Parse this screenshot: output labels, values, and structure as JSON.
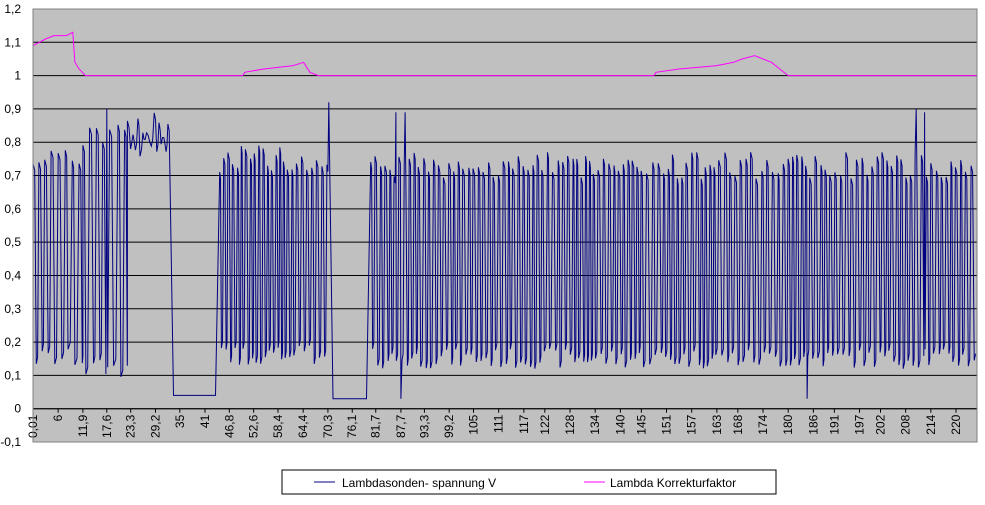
{
  "chart_data": {
    "type": "line",
    "title": "",
    "xlabel": "",
    "ylabel": "",
    "ylim": [
      -0.1,
      1.2
    ],
    "y_ticks": [
      "-0,1",
      "0",
      "0,1",
      "0,2",
      "0,3",
      "0,4",
      "0,5",
      "0,6",
      "0,7",
      "0,8",
      "0,9",
      "1",
      "1,1",
      "1,2"
    ],
    "x_range": [
      0.01,
      225
    ],
    "x_ticks": [
      "0,01",
      "6",
      "11,9",
      "17,6",
      "23,3",
      "29,2",
      "35",
      "41",
      "46,8",
      "52,6",
      "58,4",
      "64,4",
      "70,3",
      "76,1",
      "81,7",
      "87,7",
      "93,3",
      "99,2",
      "105",
      "111",
      "117",
      "122",
      "128",
      "134",
      "140",
      "145",
      "151",
      "157",
      "163",
      "168",
      "174",
      "180",
      "186",
      "191",
      "197",
      "202",
      "208",
      "214",
      "220"
    ],
    "x_tick_values": [
      0.01,
      6,
      11.9,
      17.6,
      23.3,
      29.2,
      35,
      41,
      46.8,
      52.6,
      58.4,
      64.4,
      70.3,
      76.1,
      81.7,
      87.7,
      93.3,
      99.2,
      105,
      111,
      117,
      122,
      128,
      134,
      140,
      145,
      151,
      157,
      163,
      168,
      174,
      180,
      186,
      191,
      197,
      202,
      208,
      214,
      220
    ],
    "grid": "horizontal",
    "plot_background": "#c0c0c0",
    "legend_position": "bottom",
    "series": [
      {
        "name": "Lambdasonden- spannung  V",
        "color": "#000080",
        "pattern": "oscillating",
        "segments": [
          {
            "x_from": 0.01,
            "x_to": 11.9,
            "low": 0.12,
            "high": 0.78,
            "period": 1.6
          },
          {
            "x_from": 11.9,
            "x_to": 22.5,
            "low": 0.09,
            "high": 0.87,
            "period": 1.8
          },
          {
            "x_from": 22.5,
            "x_to": 32.5,
            "low": 0.75,
            "high": 0.89,
            "period": 1.2
          },
          {
            "x_from": 33.5,
            "x_to": 43.5,
            "low": 0.04,
            "high": 0.04,
            "period": 0
          },
          {
            "x_from": 44.5,
            "x_to": 70.3,
            "low": 0.13,
            "high": 0.79,
            "period": 1.1
          },
          {
            "x_from": 71.5,
            "x_to": 79.5,
            "low": 0.03,
            "high": 0.03,
            "period": 0
          },
          {
            "x_from": 80.5,
            "x_to": 225,
            "low": 0.12,
            "high": 0.77,
            "period": 1.2
          }
        ],
        "peaks": [
          {
            "x": 70.5,
            "y": 0.92
          },
          {
            "x": 86.5,
            "y": 0.89
          },
          {
            "x": 88.7,
            "y": 0.89
          },
          {
            "x": 17.6,
            "y": 0.9
          },
          {
            "x": 210.5,
            "y": 0.9
          },
          {
            "x": 212.5,
            "y": 0.89
          },
          {
            "x": 184.5,
            "y": 0.03
          },
          {
            "x": 87.7,
            "y": 0.03
          }
        ]
      },
      {
        "name": "Lambda Korrekturfaktor",
        "color": "#ff00ff",
        "points": [
          [
            0.01,
            1.09
          ],
          [
            1.5,
            1.1
          ],
          [
            3,
            1.11
          ],
          [
            5,
            1.12
          ],
          [
            8,
            1.12
          ],
          [
            9.5,
            1.13
          ],
          [
            10,
            1.04
          ],
          [
            11,
            1.02
          ],
          [
            12.5,
            1.0
          ],
          [
            50,
            1.0
          ],
          [
            50.5,
            1.01
          ],
          [
            55,
            1.02
          ],
          [
            62,
            1.03
          ],
          [
            64.5,
            1.04
          ],
          [
            66,
            1.01
          ],
          [
            68,
            1.0
          ],
          [
            148,
            1.0
          ],
          [
            148.5,
            1.01
          ],
          [
            154,
            1.02
          ],
          [
            163,
            1.03
          ],
          [
            167,
            1.04
          ],
          [
            169,
            1.05
          ],
          [
            172,
            1.06
          ],
          [
            176,
            1.04
          ],
          [
            178,
            1.02
          ],
          [
            180,
            1.0
          ],
          [
            225,
            1.0
          ]
        ]
      }
    ]
  }
}
